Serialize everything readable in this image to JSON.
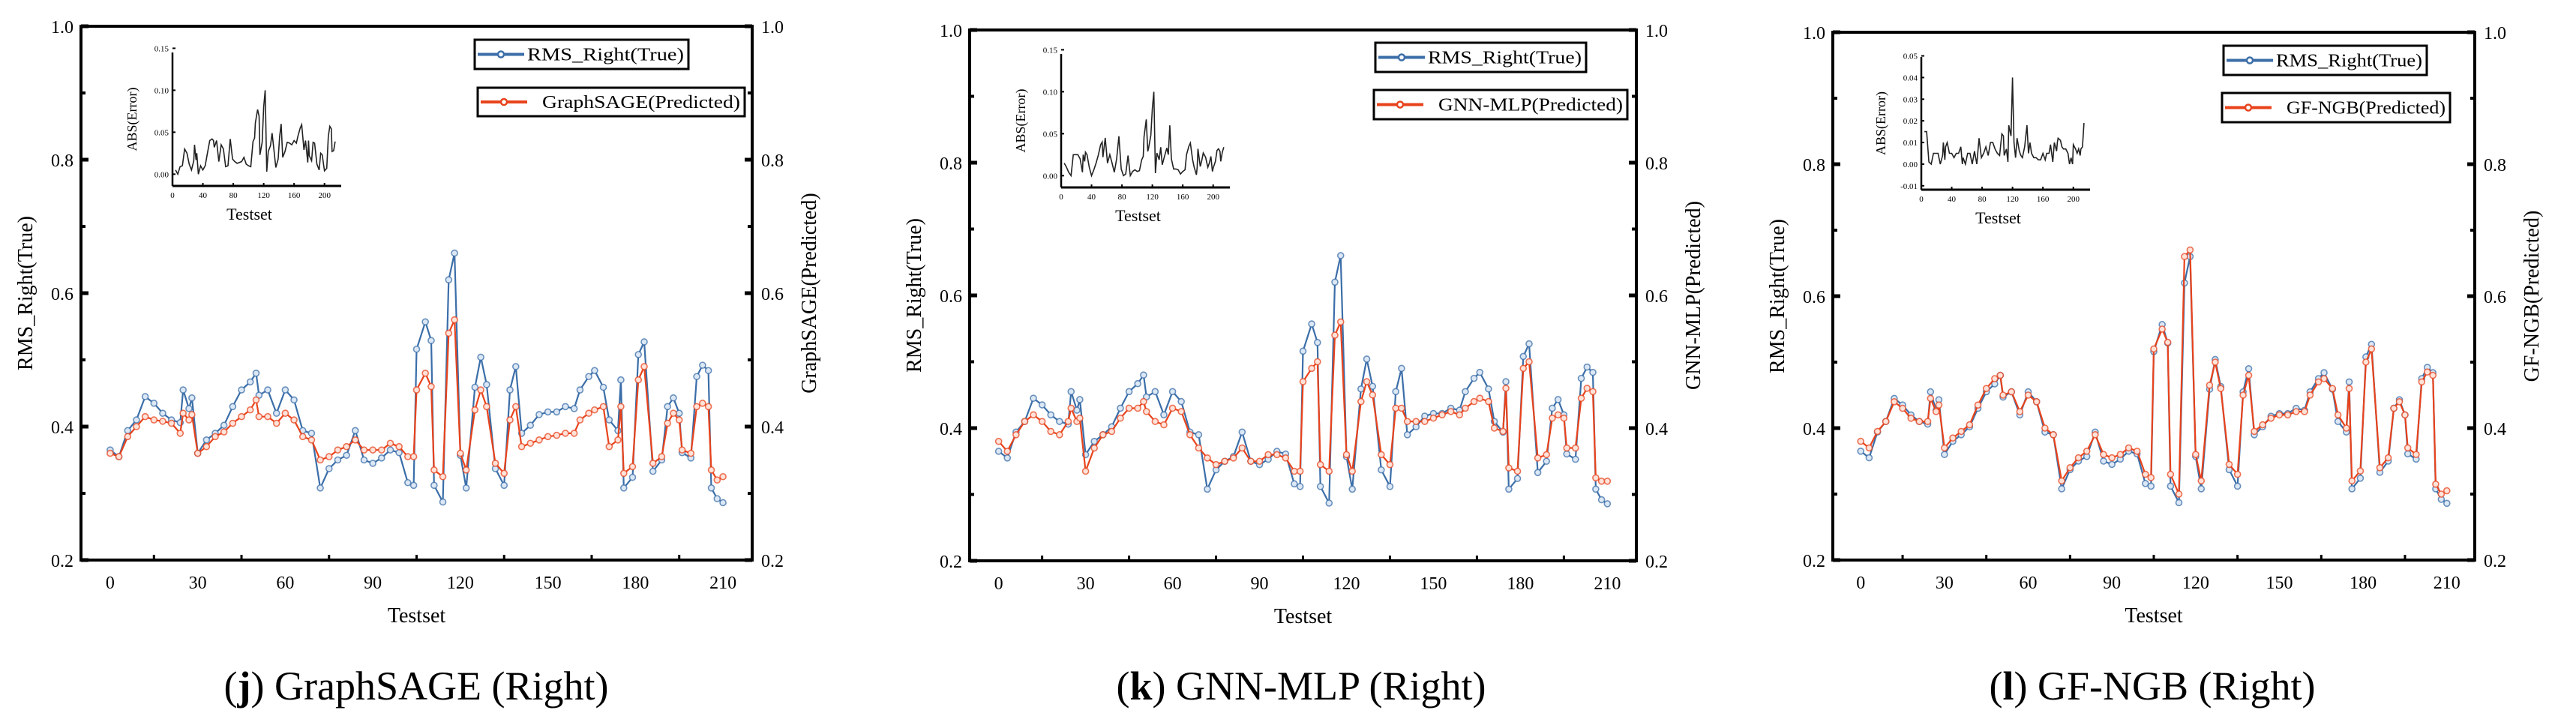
{
  "colors": {
    "true": "#3b6ea8",
    "predicted": "#e8431c",
    "axis": "#000000",
    "inset_line": "#222222"
  },
  "chart_data": [
    {
      "type": "line",
      "caption_letter": "j",
      "caption_text": "GraphSAGE (Right)",
      "xlabel": "Testset",
      "ylabel_left": "RMS_Right(True)",
      "ylabel_right": "GraphSAGE(Predicted)",
      "xlim": [
        -10,
        220
      ],
      "ylim": [
        0.2,
        1.0
      ],
      "xticks": [
        "0",
        "30",
        "60",
        "90",
        "120",
        "150",
        "180",
        "210"
      ],
      "yticks": [
        "0.2",
        "0.4",
        "0.6",
        "0.8",
        "1.0"
      ],
      "legend_placement": "top-right",
      "series": [
        {
          "name": "RMS_Right(True)",
          "role": "true"
        },
        {
          "name": "GraphSAGE(Predicted)",
          "role": "predicted",
          "values": [
            0.36,
            0.355,
            0.385,
            0.4,
            0.415,
            0.41,
            0.408,
            0.405,
            0.39,
            0.42,
            0.41,
            0.418,
            0.36,
            0.37,
            0.385,
            0.392,
            0.405,
            0.415,
            0.425,
            0.44,
            0.415,
            0.415,
            0.405,
            0.42,
            0.41,
            0.385,
            0.38,
            0.35,
            0.355,
            0.365,
            0.37,
            0.38,
            0.365,
            0.365,
            0.365,
            0.375,
            0.37,
            0.355,
            0.355,
            0.455,
            0.48,
            0.46,
            0.335,
            0.325,
            0.54,
            0.56,
            0.36,
            0.335,
            0.425,
            0.455,
            0.43,
            0.345,
            0.33,
            0.41,
            0.43,
            0.37,
            0.375,
            0.38,
            0.385,
            0.387,
            0.39,
            0.39,
            0.41,
            0.42,
            0.425,
            0.43,
            0.37,
            0.38,
            0.43,
            0.33,
            0.34,
            0.47,
            0.49,
            0.345,
            0.355,
            0.405,
            0.42,
            0.41,
            0.365,
            0.36,
            0.43,
            0.435,
            0.43,
            0.335,
            0.32,
            0.325
          ]
        }
      ],
      "inset": {
        "type": "line",
        "ylabel": "ABS(Error)",
        "xlabel": "Testset",
        "xlim": [
          0,
          222
        ],
        "ylim": [
          -0.014,
          0.145
        ],
        "xticks": [
          "0",
          "40",
          "80",
          "120",
          "160",
          "200"
        ],
        "yticks": [
          "0.00",
          "0.05",
          "0.10",
          "0.15"
        ]
      }
    },
    {
      "type": "line",
      "caption_letter": "k",
      "caption_text": "GNN-MLP (Right)",
      "xlabel": "Testset",
      "ylabel_left": "RMS_Right(True)",
      "ylabel_right": "GNN-MLP(Predicted)",
      "xlim": [
        -10,
        220
      ],
      "ylim": [
        0.2,
        1.0
      ],
      "xticks": [
        "0",
        "30",
        "60",
        "90",
        "120",
        "150",
        "180",
        "210"
      ],
      "yticks": [
        "0.2",
        "0.4",
        "0.6",
        "0.8",
        "1.0"
      ],
      "legend_placement": "top-right",
      "series": [
        {
          "name": "RMS_Right(True)",
          "role": "true"
        },
        {
          "name": "GNN-MLP(Predicted)",
          "role": "predicted",
          "values": [
            0.38,
            0.365,
            0.39,
            0.41,
            0.42,
            0.41,
            0.395,
            0.39,
            0.41,
            0.43,
            0.41,
            0.415,
            0.335,
            0.37,
            0.39,
            0.395,
            0.415,
            0.43,
            0.43,
            0.44,
            0.425,
            0.41,
            0.405,
            0.43,
            0.425,
            0.39,
            0.37,
            0.355,
            0.345,
            0.35,
            0.355,
            0.37,
            0.35,
            0.35,
            0.36,
            0.36,
            0.355,
            0.335,
            0.335,
            0.47,
            0.49,
            0.5,
            0.345,
            0.335,
            0.54,
            0.56,
            0.36,
            0.335,
            0.44,
            0.47,
            0.45,
            0.36,
            0.345,
            0.43,
            0.43,
            0.41,
            0.41,
            0.41,
            0.415,
            0.42,
            0.425,
            0.42,
            0.43,
            0.44,
            0.445,
            0.44,
            0.4,
            0.395,
            0.46,
            0.34,
            0.335,
            0.49,
            0.5,
            0.355,
            0.36,
            0.415,
            0.42,
            0.415,
            0.37,
            0.37,
            0.445,
            0.46,
            0.455,
            0.325,
            0.32,
            0.32
          ]
        }
      ],
      "inset": {
        "type": "line",
        "ylabel": "ABS(Error)",
        "xlabel": "Testset",
        "xlim": [
          0,
          222
        ],
        "ylim": [
          -0.014,
          0.145
        ],
        "xticks": [
          "0",
          "40",
          "80",
          "120",
          "160",
          "200"
        ],
        "yticks": [
          "0.00",
          "0.05",
          "0.10",
          "0.15"
        ]
      }
    },
    {
      "type": "line",
      "caption_letter": "l",
      "caption_text": "GF-NGB (Right)",
      "xlabel": "Testset",
      "ylabel_left": "RMS_Right(True)",
      "ylabel_right": "GF-NGB(Predicted)",
      "xlim": [
        -10,
        220
      ],
      "ylim": [
        0.2,
        1.0
      ],
      "xticks": [
        "0",
        "30",
        "60",
        "90",
        "120",
        "150",
        "180",
        "210"
      ],
      "yticks": [
        "0.2",
        "0.4",
        "0.6",
        "0.8",
        "1.0"
      ],
      "legend_placement": "top-right",
      "series": [
        {
          "name": "RMS_Right(True)",
          "role": "true"
        },
        {
          "name": "GF-NGB(Predicted)",
          "role": "predicted",
          "values": [
            0.38,
            0.37,
            0.395,
            0.41,
            0.44,
            0.43,
            0.415,
            0.41,
            0.41,
            0.445,
            0.425,
            0.435,
            0.37,
            0.385,
            0.395,
            0.405,
            0.435,
            0.46,
            0.475,
            0.48,
            0.45,
            0.455,
            0.425,
            0.45,
            0.44,
            0.4,
            0.39,
            0.32,
            0.34,
            0.355,
            0.365,
            0.39,
            0.36,
            0.355,
            0.36,
            0.37,
            0.365,
            0.33,
            0.325,
            0.52,
            0.55,
            0.53,
            0.33,
            0.3,
            0.66,
            0.67,
            0.36,
            0.32,
            0.465,
            0.5,
            0.46,
            0.345,
            0.33,
            0.45,
            0.48,
            0.395,
            0.405,
            0.415,
            0.42,
            0.42,
            0.425,
            0.425,
            0.45,
            0.47,
            0.475,
            0.46,
            0.42,
            0.4,
            0.46,
            0.32,
            0.335,
            0.5,
            0.52,
            0.34,
            0.355,
            0.43,
            0.44,
            0.42,
            0.37,
            0.36,
            0.47,
            0.485,
            0.48,
            0.315,
            0.3,
            0.305
          ]
        }
      ],
      "inset": {
        "type": "line",
        "ylabel": "ABS(Error)",
        "xlabel": "Testset",
        "xlim": [
          0,
          222
        ],
        "ylim": [
          -0.0118,
          0.0495
        ],
        "xticks": [
          "0",
          "40",
          "80",
          "120",
          "160",
          "200"
        ],
        "yticks": [
          "-0.01",
          "0.00",
          "0.01",
          "0.02",
          "0.03",
          "0.04",
          "0.05"
        ]
      }
    }
  ],
  "shared": {
    "x": [
      0,
      3,
      6,
      9,
      12,
      15,
      18,
      21,
      24,
      25,
      27,
      28,
      30,
      33,
      36,
      39,
      42,
      45,
      48,
      50,
      51,
      54,
      57,
      60,
      63,
      66,
      69,
      72,
      75,
      78,
      81,
      84,
      87,
      90,
      93,
      96,
      99,
      102,
      104,
      105,
      108,
      110,
      111,
      114,
      116,
      118,
      120,
      122,
      125,
      127,
      129,
      132,
      135,
      137,
      139,
      141,
      144,
      147,
      150,
      153,
      156,
      159,
      161,
      164,
      166,
      169,
      171,
      174,
      175,
      176,
      179,
      181,
      183,
      186,
      189,
      191,
      193,
      195,
      196,
      199,
      201,
      203,
      205,
      206,
      208,
      210
    ],
    "true_values": [
      0.365,
      0.355,
      0.394,
      0.41,
      0.445,
      0.435,
      0.42,
      0.41,
      0.406,
      0.455,
      0.427,
      0.443,
      0.36,
      0.38,
      0.39,
      0.402,
      0.43,
      0.455,
      0.467,
      0.48,
      0.447,
      0.455,
      0.42,
      0.455,
      0.44,
      0.394,
      0.39,
      0.308,
      0.337,
      0.35,
      0.357,
      0.394,
      0.35,
      0.345,
      0.353,
      0.365,
      0.361,
      0.316,
      0.312,
      0.516,
      0.557,
      0.529,
      0.312,
      0.287,
      0.62,
      0.66,
      0.357,
      0.308,
      0.459,
      0.504,
      0.463,
      0.337,
      0.312,
      0.455,
      0.49,
      0.39,
      0.402,
      0.418,
      0.422,
      0.422,
      0.43,
      0.427,
      0.455,
      0.475,
      0.484,
      0.459,
      0.41,
      0.394,
      0.47,
      0.308,
      0.324,
      0.508,
      0.527,
      0.333,
      0.35,
      0.43,
      0.443,
      0.42,
      0.361,
      0.353,
      0.475,
      0.492,
      0.484,
      0.308,
      0.292,
      0.286
    ]
  }
}
